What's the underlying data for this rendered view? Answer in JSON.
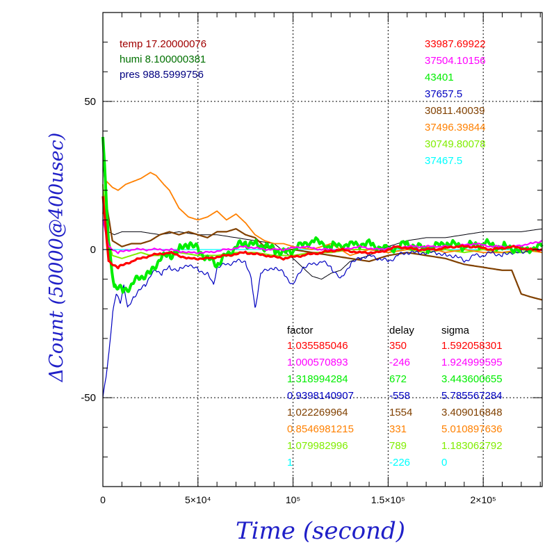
{
  "chart_data": {
    "type": "line",
    "title": "",
    "xlabel": "Time (second)",
    "ylabel": "ΔCount (50000@400usec)",
    "xlim": [
      0,
      231000
    ],
    "ylim": [
      -80,
      80
    ],
    "grid": true,
    "x_ticks": [
      {
        "value": 0,
        "label": "0"
      },
      {
        "value": 50000,
        "label": "5×10⁴"
      },
      {
        "value": 100000,
        "label": "10⁵"
      },
      {
        "value": 150000,
        "label": "1.5×10⁵"
      },
      {
        "value": 200000,
        "label": "2×10⁵"
      }
    ],
    "y_ticks": [
      {
        "value": 50,
        "label": "50"
      },
      {
        "value": 0,
        "label": "0"
      },
      {
        "value": -50,
        "label": "-50"
      }
    ],
    "env_text": [
      {
        "text": "temp 17.20000076",
        "color": "#a00000"
      },
      {
        "text": "humi 8.100000381",
        "color": "#007000"
      },
      {
        "text": "pres 988.5999756",
        "color": "#000080"
      }
    ],
    "table_headers": [
      "factor",
      "delay",
      "sigma"
    ],
    "series": [
      {
        "color": "#ff0000",
        "baseline": "33987.69922",
        "factor": "1.035585046",
        "delay": "350",
        "sigma": "1.592058301",
        "x": [
          0,
          3000,
          8000,
          15000,
          25000,
          35000,
          45000,
          55000,
          65000,
          75000,
          85000,
          95000,
          105000,
          115000,
          125000,
          135000,
          145000,
          155000,
          165000,
          175000,
          185000,
          195000,
          205000,
          215000,
          225000,
          231000
        ],
        "y": [
          18,
          -4,
          -6,
          -4,
          -2,
          -1,
          -3,
          -3,
          -2,
          -1,
          -2,
          -3,
          -2,
          -1,
          0,
          -1,
          -1,
          1,
          0,
          0,
          1,
          1,
          0,
          1,
          0,
          0
        ]
      },
      {
        "color": "#ff00ff",
        "baseline": "37504.10156",
        "factor": "1.000570893",
        "delay": "-246",
        "sigma": "1.924999595",
        "x": [
          0,
          3000,
          8000,
          15000,
          25000,
          35000,
          45000,
          55000,
          65000,
          75000,
          85000,
          95000,
          105000,
          115000,
          125000,
          135000,
          145000,
          155000,
          165000,
          175000,
          185000,
          195000,
          205000,
          215000,
          225000,
          231000
        ],
        "y": [
          10,
          1,
          -1,
          0,
          0,
          0,
          -1,
          -1,
          0,
          1,
          0,
          0,
          1,
          0,
          0,
          1,
          0,
          1,
          1,
          1,
          1,
          2,
          1,
          1,
          2,
          3
        ]
      },
      {
        "color": "#00ee00",
        "baseline": "43401",
        "factor": "1.318994284",
        "delay": "672",
        "sigma": "3.443600655",
        "x": [
          0,
          3000,
          6000,
          10000,
          15000,
          20000,
          25000,
          30000,
          35000,
          40000,
          45000,
          50000,
          55000,
          60000,
          65000,
          70000,
          75000,
          80000,
          85000,
          90000,
          95000,
          100000,
          110000,
          120000,
          130000,
          140000,
          150000,
          160000,
          170000,
          180000,
          190000,
          200000,
          210000,
          220000,
          231000
        ],
        "y": [
          38,
          2,
          -12,
          -14,
          -12,
          -9,
          -8,
          -3,
          -2,
          0,
          2,
          0,
          -3,
          -5,
          -2,
          1,
          2,
          2,
          1,
          0,
          -1,
          0,
          3,
          1,
          2,
          2,
          0,
          2,
          0,
          2,
          1,
          2,
          1,
          0,
          1
        ]
      },
      {
        "color": "#0000c0",
        "baseline": "37657.5",
        "factor": "0.9398140907",
        "delay": "-558",
        "sigma": "5.785567284",
        "x": [
          0,
          1500,
          3000,
          5000,
          7000,
          9000,
          11000,
          13000,
          16000,
          19000,
          22000,
          25000,
          28000,
          31000,
          35000,
          40000,
          45000,
          50000,
          55000,
          58000,
          60000,
          65000,
          70000,
          75000,
          78000,
          80000,
          83000,
          90000,
          95000,
          100000,
          105000,
          110000,
          115000,
          120000,
          125000,
          130000,
          135000,
          140000,
          145000,
          150000,
          155000,
          160000,
          165000,
          170000,
          175000,
          180000,
          185000,
          190000,
          195000,
          200000,
          205000,
          210000,
          215000,
          220000,
          225000,
          231000
        ],
        "y": [
          -50,
          -44,
          -36,
          -22,
          -15,
          -18,
          -12,
          -20,
          -16,
          -14,
          -12,
          -9,
          -7,
          -8,
          -6,
          -7,
          -5,
          -7,
          -8,
          -12,
          -6,
          -5,
          -4,
          -4,
          -10,
          -20,
          -8,
          -6,
          -8,
          -12,
          -6,
          -5,
          -4,
          -6,
          -10,
          -5,
          -3,
          -2,
          -3,
          -4,
          -2,
          -1,
          -1,
          -1,
          -1,
          -2,
          -2,
          -4,
          -2,
          -2,
          -1,
          -2,
          -1,
          -1,
          0,
          0
        ]
      },
      {
        "color": "#804000",
        "baseline": "30811.40039",
        "factor": "1.022269964",
        "delay": "1554",
        "sigma": "3.409016848",
        "x": [
          0,
          2000,
          5000,
          10000,
          15000,
          20000,
          25000,
          30000,
          35000,
          40000,
          45000,
          50000,
          55000,
          60000,
          65000,
          70000,
          75000,
          80000,
          85000,
          90000,
          100000,
          110000,
          120000,
          130000,
          140000,
          150000,
          160000,
          170000,
          180000,
          190000,
          200000,
          210000,
          215000,
          220000,
          225000,
          231000
        ],
        "y": [
          36,
          15,
          3,
          1,
          2,
          2,
          3,
          5,
          6,
          5,
          6,
          5,
          4,
          6,
          6,
          7,
          5,
          4,
          1,
          0,
          0,
          -1,
          -2,
          -3,
          -4,
          -2,
          -1,
          -2,
          -3,
          -5,
          -6,
          -7,
          -7,
          -15,
          -16,
          -17
        ]
      },
      {
        "color": "#ff8000",
        "baseline": "37496.39844",
        "factor": "0.8546981215",
        "delay": "331",
        "sigma": "5.010897636",
        "x": [
          0,
          2000,
          5000,
          8000,
          12000,
          16000,
          20000,
          25000,
          28000,
          32000,
          35000,
          40000,
          45000,
          50000,
          55000,
          60000,
          65000,
          70000,
          75000,
          80000,
          85000,
          90000,
          95000,
          100000,
          110000,
          120000,
          130000,
          140000,
          150000,
          160000,
          170000,
          180000,
          190000,
          200000,
          210000,
          220000,
          231000
        ],
        "y": [
          12,
          23,
          21,
          20,
          22,
          23,
          24,
          26,
          25,
          22,
          20,
          14,
          11,
          10,
          11,
          13,
          10,
          12,
          9,
          5,
          3,
          2,
          2,
          1,
          0,
          2,
          -2,
          0,
          -1,
          0,
          1,
          -1,
          0,
          -1,
          -1,
          0,
          -1
        ]
      },
      {
        "color": "#80ee00",
        "baseline": "30749.80078",
        "factor": "1.079982996",
        "delay": "789",
        "sigma": "1.183062792",
        "x": [
          0,
          2000,
          5000,
          10000,
          15000,
          20000,
          25000,
          30000,
          40000,
          50000,
          60000,
          70000,
          80000,
          90000,
          100000,
          110000,
          120000,
          130000,
          140000,
          150000,
          160000,
          170000,
          180000,
          190000,
          200000,
          210000,
          220000,
          231000
        ],
        "y": [
          22,
          6,
          -2,
          -3,
          -2,
          -1,
          -2,
          -2,
          -1,
          -2,
          -2,
          -1,
          -1,
          -2,
          -2,
          -1,
          -1,
          0,
          0,
          -1,
          0,
          -1,
          0,
          -1,
          0,
          -1,
          -1,
          0
        ]
      },
      {
        "color": "#00ffff",
        "baseline": "37467.5",
        "factor": "1",
        "delay": "-226",
        "sigma": "0",
        "x": [
          0,
          231000
        ],
        "y": [
          0,
          0
        ]
      }
    ],
    "envelope": {
      "color": "#00000a",
      "x": [
        0,
        3000,
        6000,
        10000,
        20000,
        30000,
        40000,
        50000,
        60000,
        70000,
        80000,
        90000,
        100000,
        110000,
        115000,
        120000,
        125000,
        130000,
        140000,
        150000,
        160000,
        170000,
        180000,
        190000,
        200000,
        210000,
        220000,
        231000
      ],
      "y": [
        30,
        6,
        5,
        6,
        6,
        5,
        6,
        5,
        5,
        4,
        3,
        2,
        -3,
        -9,
        -10,
        -8,
        -7,
        -4,
        -2,
        1,
        3,
        4,
        4,
        5,
        6,
        6,
        6,
        7
      ]
    }
  }
}
